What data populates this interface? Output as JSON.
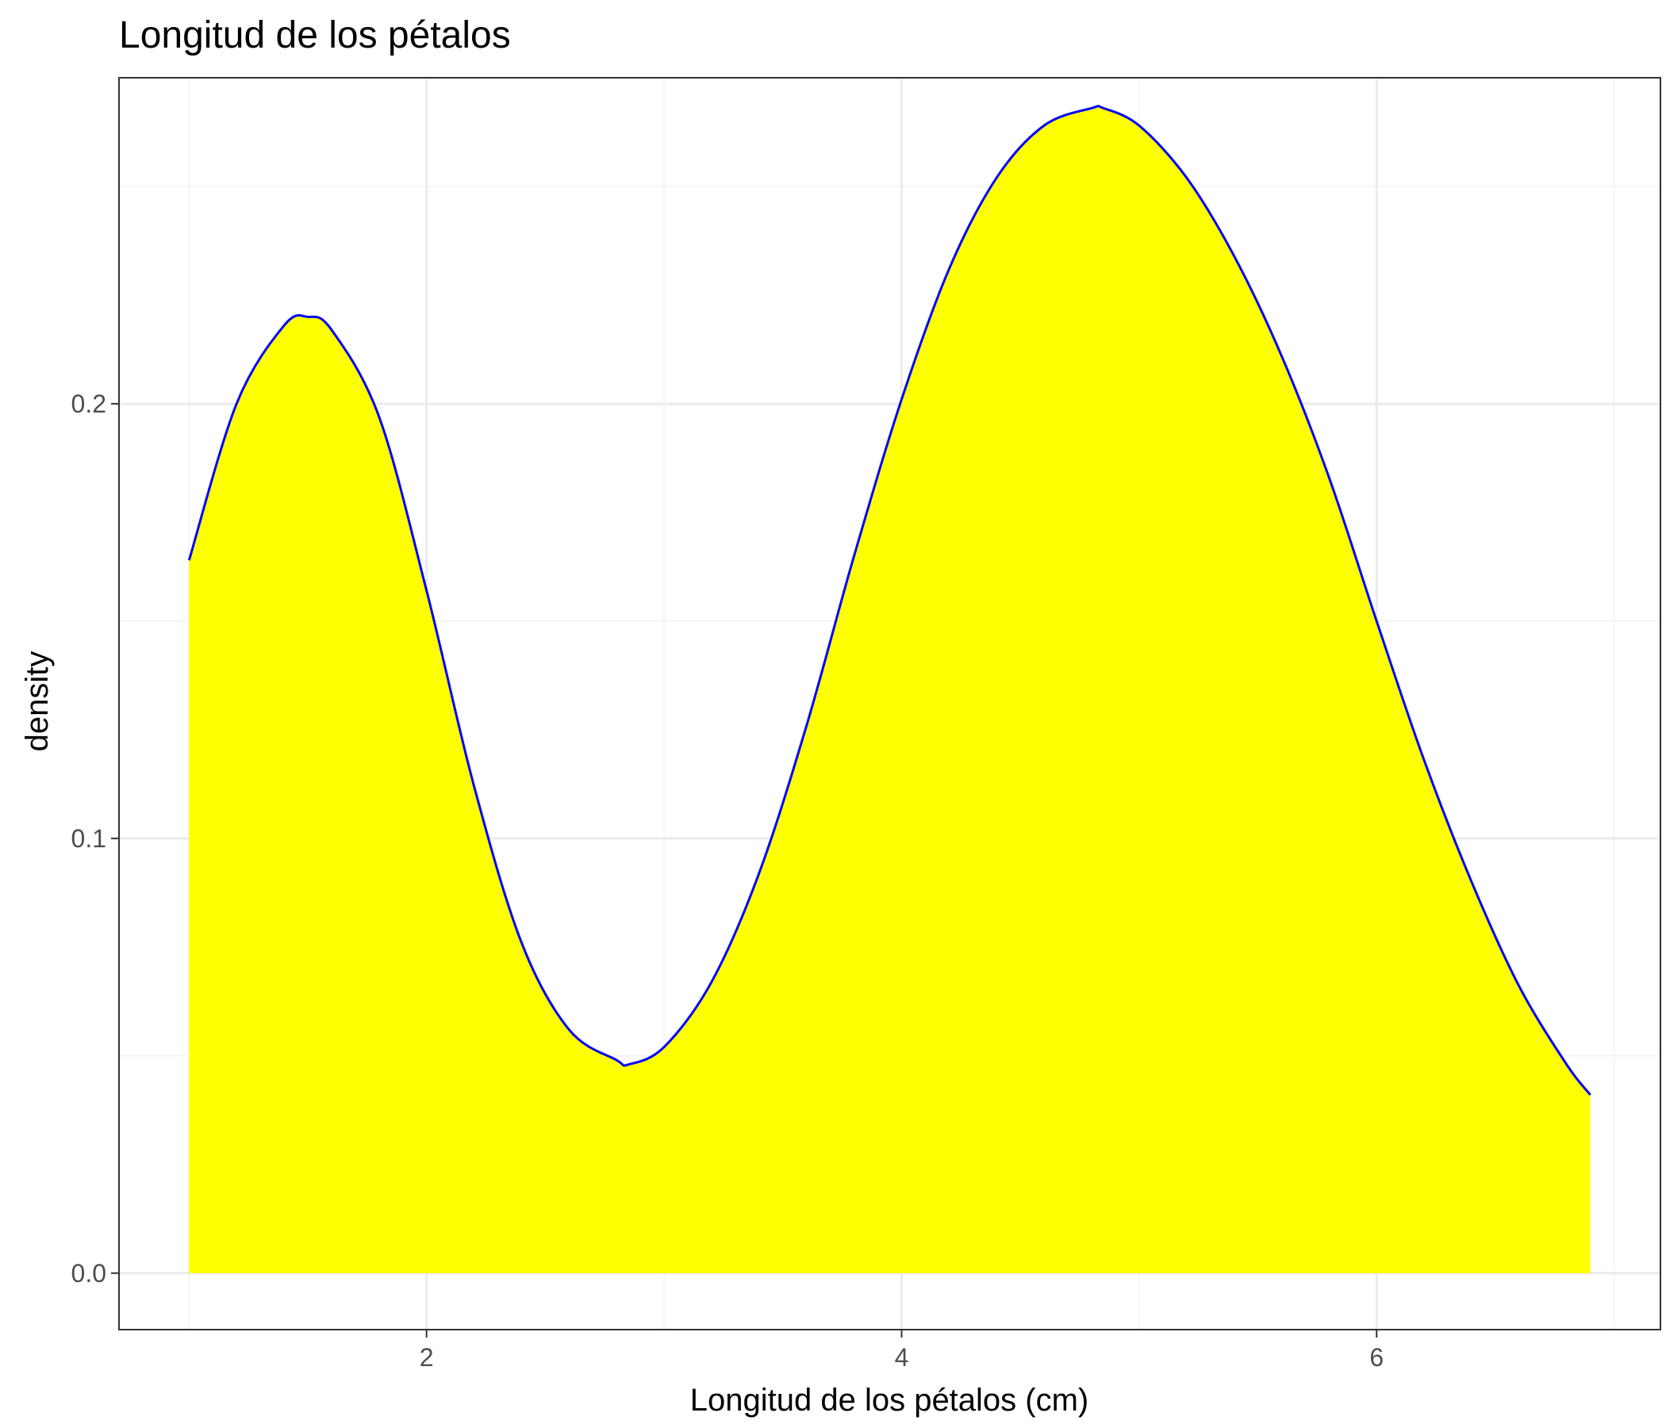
{
  "chart_data": {
    "type": "area",
    "title": "Longitud de los pétalos",
    "xlabel": "Longitud de los pétalos (cm)",
    "ylabel": "density",
    "xlim": [
      0.705,
      7.195
    ],
    "ylim": [
      -0.013,
      0.275
    ],
    "x_ticks": [
      2,
      4,
      6
    ],
    "x_tick_labels": [
      "2",
      "4",
      "6"
    ],
    "y_ticks": [
      0.0,
      0.1,
      0.2
    ],
    "y_tick_labels": [
      "0.0",
      "0.1",
      "0.2"
    ],
    "grid": true,
    "series": [
      {
        "x": [
          1.0,
          1.2,
          1.4,
          1.5,
          1.6,
          1.8,
          2.0,
          2.2,
          2.4,
          2.6,
          2.8,
          2.85,
          3.0,
          3.2,
          3.4,
          3.6,
          3.8,
          4.0,
          4.2,
          4.4,
          4.6,
          4.8,
          4.85,
          5.0,
          5.2,
          5.4,
          5.6,
          5.8,
          6.0,
          6.2,
          6.4,
          6.6,
          6.8,
          6.9
        ],
        "y": [
          0.164,
          0.2,
          0.218,
          0.22,
          0.217,
          0.197,
          0.157,
          0.112,
          0.076,
          0.056,
          0.049,
          0.048,
          0.052,
          0.067,
          0.092,
          0.126,
          0.165,
          0.201,
          0.231,
          0.252,
          0.264,
          0.268,
          0.268,
          0.264,
          0.252,
          0.234,
          0.211,
          0.183,
          0.15,
          0.118,
          0.09,
          0.066,
          0.048,
          0.041
        ],
        "fill": "#ffff00",
        "stroke": "#0000ff"
      }
    ]
  },
  "colors": {
    "fill": "#ffff00",
    "line": "#0000ff",
    "grid_major": "#ebebeb",
    "grid_minor": "#f2f2f2",
    "panel_border": "#333333"
  }
}
